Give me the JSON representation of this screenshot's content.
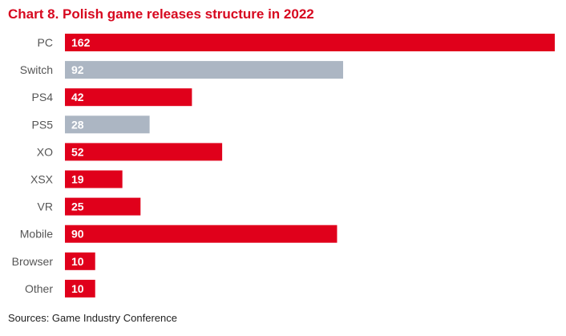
{
  "chart_data": {
    "type": "bar",
    "orientation": "horizontal",
    "title": "Chart 8. Polish game releases structure in 2022",
    "categories": [
      "PC",
      "Switch",
      "PS4",
      "PS5",
      "XO",
      "XSX",
      "VR",
      "Mobile",
      "Browser",
      "Other"
    ],
    "values": [
      162,
      92,
      42,
      28,
      52,
      19,
      25,
      90,
      10,
      10
    ],
    "value_labels": [
      "162",
      "92",
      "42",
      "28",
      "52",
      "19",
      "25",
      "90",
      "10",
      "10"
    ],
    "bar_colors": [
      "#e0001b",
      "#acb6c3",
      "#e0001b",
      "#acb6c3",
      "#e0001b",
      "#e0001b",
      "#e0001b",
      "#e0001b",
      "#e0001b",
      "#e0001b"
    ],
    "xlim": [
      0,
      162
    ],
    "grid": false,
    "legend": "none",
    "data_labels": "inside-bar-start"
  },
  "source": "Sources: Game Industry Conference",
  "colors": {
    "title": "#d7081f",
    "category_label": "#555555",
    "value_label": "#ffffff",
    "source": "#222222"
  }
}
